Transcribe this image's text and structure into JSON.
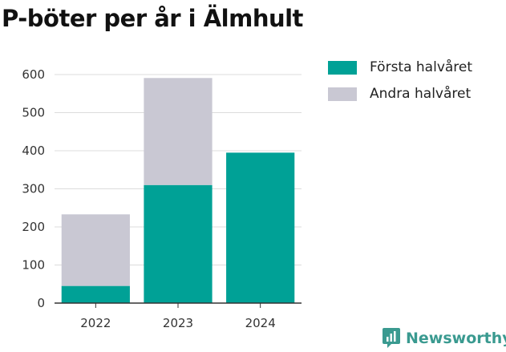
{
  "chart_data": {
    "type": "bar",
    "stacked": true,
    "title": "P-böter per år i Älmhult",
    "categories": [
      "2022",
      "2023",
      "2024"
    ],
    "series": [
      {
        "name": "Första halvåret",
        "color": "#00a196",
        "values": [
          45,
          310,
          395
        ]
      },
      {
        "name": "Andra halvåret",
        "color": "#c9c8d3",
        "values": [
          188,
          281,
          0
        ]
      }
    ],
    "yticks": [
      0,
      100,
      200,
      300,
      400,
      500,
      600
    ],
    "ylim": [
      0,
      600
    ],
    "grid": true,
    "legend_position": "right"
  },
  "brand": {
    "name": "Newsworthy",
    "icon": "newsworthy-logo-icon",
    "color": "#3a9a90"
  }
}
